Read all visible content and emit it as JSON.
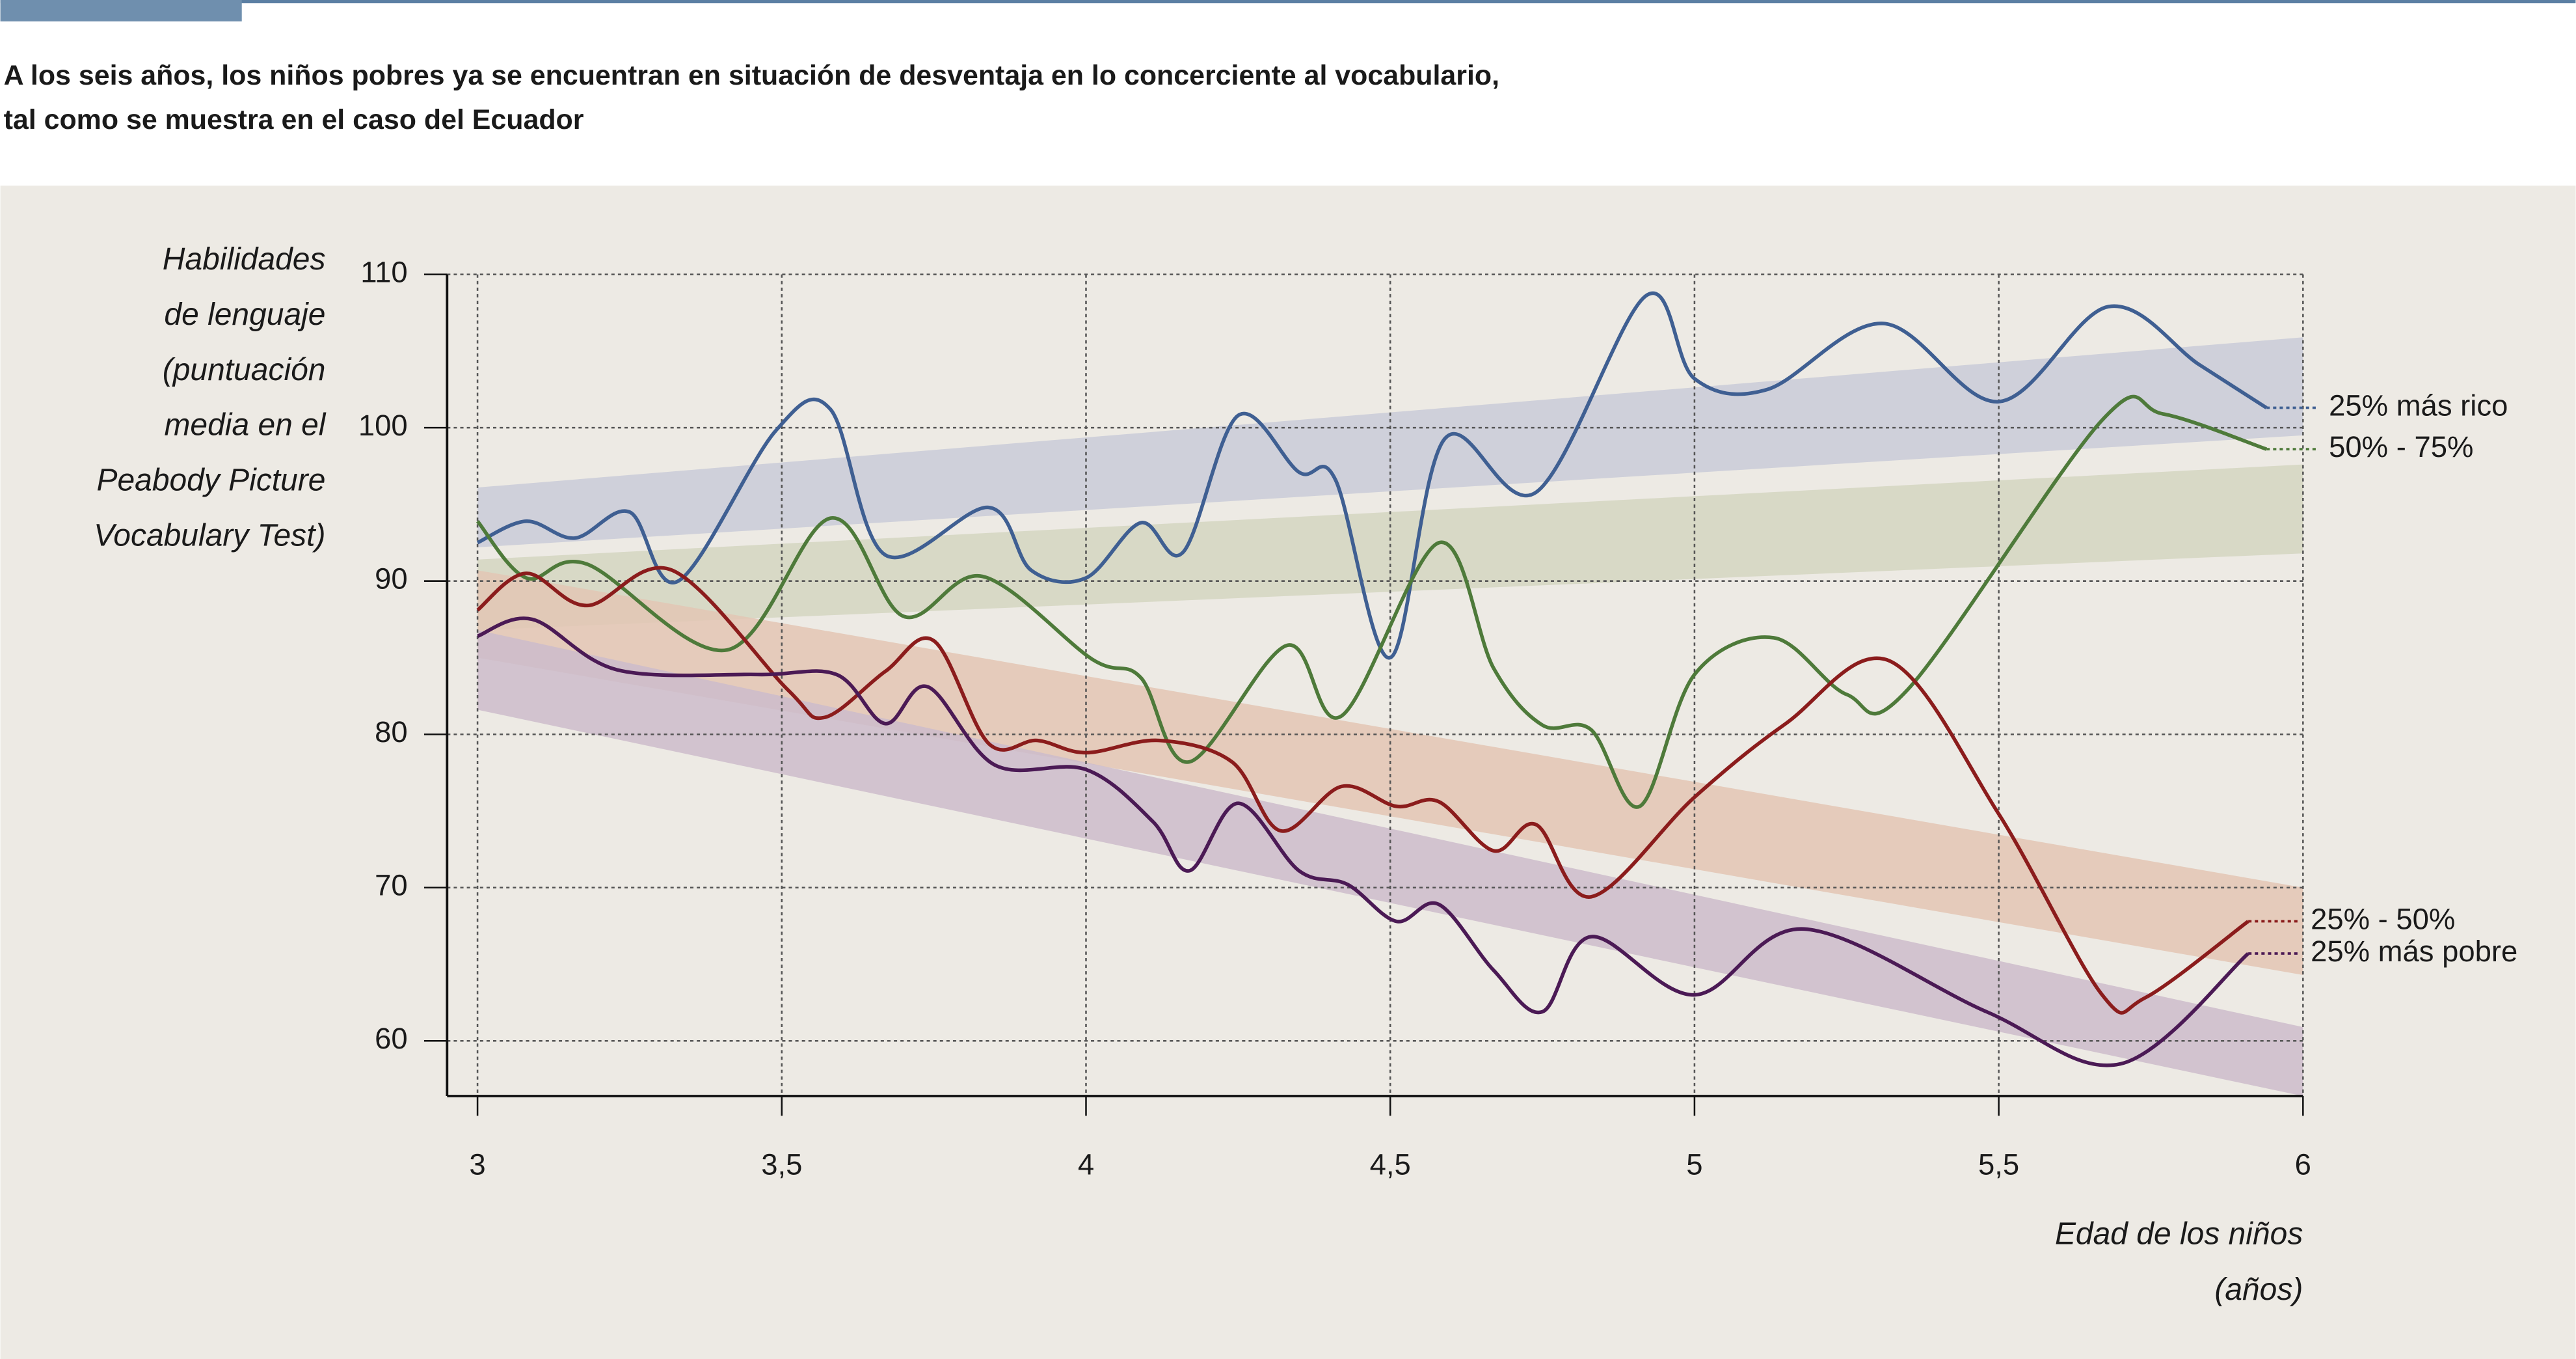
{
  "chart_data": {
    "type": "line",
    "title": [
      "A los seis años, los niños pobres ya se encuentran en situación de desventaja en lo concerciente al vocabulario,",
      "tal como se muestra en el caso del Ecuador"
    ],
    "ylabel": [
      "Habilidades",
      "de lenguaje",
      "(puntuación",
      "media en el",
      "Peabody Picture",
      "Vocabulary Test)"
    ],
    "xlabel": [
      "Edad de los niños",
      "(años)"
    ],
    "xlim": [
      2.95,
      6
    ],
    "ylim": [
      56.4,
      110
    ],
    "xticks": [
      3,
      {
        "value": 3.5,
        "label": "3,5"
      },
      4,
      {
        "value": 4.5,
        "label": "4,5"
      },
      5,
      {
        "value": 5.5,
        "label": "5,5"
      },
      6
    ],
    "yticks": [
      60,
      70,
      80,
      90,
      100,
      110
    ],
    "grid": true,
    "bands": [
      {
        "color": "#c9cbd8",
        "x": [
          3,
          6
        ],
        "lower": [
          92.2,
          99.5
        ],
        "upper": [
          96.1,
          105.9
        ]
      },
      {
        "color": "#d3d6c1",
        "x": [
          3,
          6
        ],
        "lower": [
          86.8,
          91.8
        ],
        "upper": [
          91.4,
          97.6
        ]
      },
      {
        "color": "#e3c6b4",
        "x": [
          3,
          6
        ],
        "lower": [
          85.0,
          64.3
        ],
        "upper": [
          90.7,
          70.0
        ]
      },
      {
        "color": "#cdbccb",
        "x": [
          3,
          6
        ],
        "lower": [
          81.6,
          56.4
        ],
        "upper": [
          86.8,
          60.9
        ]
      }
    ],
    "series": [
      {
        "name": "25% más rico",
        "color": "#3f5f92",
        "x": [
          3.0,
          3.08,
          3.16,
          3.25,
          3.33,
          3.49,
          3.58,
          3.67,
          3.84,
          3.91,
          4.0,
          4.09,
          4.16,
          4.25,
          4.35,
          4.41,
          4.5,
          4.59,
          4.74,
          4.92,
          5.0,
          5.12,
          5.31,
          5.5,
          5.68,
          5.83,
          5.94
        ],
        "values": [
          92.5,
          93.9,
          92.8,
          94.5,
          90.0,
          99.8,
          101.2,
          91.7,
          94.8,
          90.7,
          90.2,
          93.8,
          91.9,
          100.8,
          97.1,
          96.6,
          85.0,
          99.3,
          95.8,
          108.6,
          103.2,
          102.5,
          106.8,
          101.7,
          107.9,
          104.1,
          101.3
        ]
      },
      {
        "name": "50% - 75%",
        "color": "#4e7a3a",
        "x": [
          3.0,
          3.08,
          3.18,
          3.41,
          3.58,
          3.7,
          3.83,
          4.01,
          4.09,
          4.17,
          4.33,
          4.42,
          4.58,
          4.67,
          4.75,
          4.83,
          4.91,
          5.0,
          5.13,
          5.25,
          5.35,
          5.67,
          5.77,
          5.94
        ],
        "values": [
          93.9,
          90.2,
          91.1,
          85.5,
          94.1,
          87.7,
          90.3,
          84.9,
          83.7,
          78.2,
          85.8,
          81.2,
          92.5,
          84.3,
          80.6,
          80.3,
          75.3,
          83.9,
          86.3,
          82.6,
          82.9,
          100.5,
          100.9,
          98.6
        ]
      },
      {
        "name": "25% - 50%",
        "color": "#8b1c1c",
        "x": [
          3.0,
          3.08,
          3.18,
          3.32,
          3.51,
          3.57,
          3.67,
          3.75,
          3.84,
          3.92,
          4.0,
          4.12,
          4.24,
          4.32,
          4.42,
          4.51,
          4.58,
          4.67,
          4.74,
          4.83,
          5.0,
          5.15,
          5.32,
          5.5,
          5.67,
          5.74,
          5.91
        ],
        "values": [
          88.1,
          90.5,
          88.4,
          90.7,
          82.9,
          81.1,
          84.1,
          86.1,
          79.4,
          79.6,
          78.8,
          79.6,
          78.2,
          73.7,
          76.6,
          75.3,
          75.6,
          72.4,
          74.1,
          69.4,
          75.9,
          80.7,
          84.8,
          74.8,
          63.0,
          62.8,
          67.8
        ]
      },
      {
        "name": "25% más pobre",
        "color": "#4b1a55",
        "x": [
          3.0,
          3.09,
          3.23,
          3.46,
          3.59,
          3.67,
          3.74,
          3.85,
          4.0,
          4.11,
          4.17,
          4.25,
          4.35,
          4.43,
          4.51,
          4.58,
          4.67,
          4.75,
          4.83,
          5.0,
          5.18,
          5.48,
          5.7,
          5.91
        ],
        "values": [
          86.4,
          87.5,
          84.2,
          83.9,
          83.9,
          80.7,
          83.1,
          78.0,
          77.7,
          74.3,
          71.1,
          75.5,
          71.1,
          70.2,
          67.8,
          68.9,
          64.6,
          61.9,
          66.8,
          63.0,
          67.3,
          61.9,
          58.5,
          65.7
        ]
      }
    ]
  }
}
